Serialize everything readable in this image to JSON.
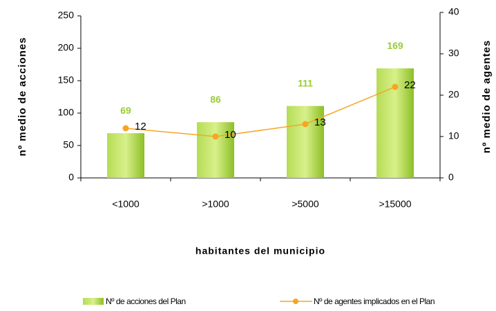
{
  "chart_data": {
    "type": "bar",
    "x_label": "habitantes del municipio",
    "y_label": "nº medio de acciones",
    "y2_label": "nº medio de agentes",
    "categories": [
      "<1000",
      ">1000",
      ">5000",
      ">15000"
    ],
    "series": [
      {
        "name": "Nº de acciones del Plan",
        "type": "bar",
        "color": "#99cc33",
        "values": [
          69,
          86,
          111,
          169
        ]
      },
      {
        "name": "Nº de agentes implicados en el Plan",
        "type": "line",
        "axis": "y2",
        "color": "#f5a623",
        "values": [
          12,
          10,
          13,
          22
        ]
      }
    ],
    "ylim": [
      0,
      250
    ],
    "yticks": [
      0,
      50,
      100,
      150,
      200,
      250
    ],
    "y2lim": [
      0,
      40
    ],
    "y2ticks": [
      0,
      10,
      20,
      30,
      40
    ]
  }
}
